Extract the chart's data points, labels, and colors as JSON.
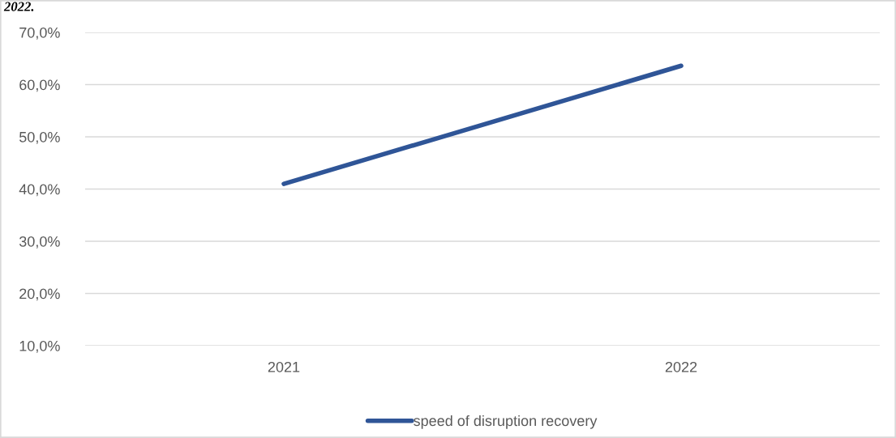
{
  "chart_data": {
    "type": "line",
    "categories": [
      "2021",
      "2022"
    ],
    "series": [
      {
        "name": "speed of disruption recovery",
        "color": "#2f5597",
        "values": [
          41.0,
          63.6
        ]
      }
    ],
    "ylim": [
      10,
      70
    ],
    "yticks": [
      {
        "value": 10,
        "label": "10,0%"
      },
      {
        "value": 20,
        "label": "20,0%"
      },
      {
        "value": 30,
        "label": "30,0%"
      },
      {
        "value": 40,
        "label": "40,0%"
      },
      {
        "value": 50,
        "label": "50,0%"
      },
      {
        "value": 60,
        "label": "60,0%"
      },
      {
        "value": 70,
        "label": "70,0%"
      }
    ],
    "grid": "y",
    "legend": "bottom",
    "marker": "none",
    "line_style": "solid",
    "annotations": [
      "2022."
    ]
  }
}
